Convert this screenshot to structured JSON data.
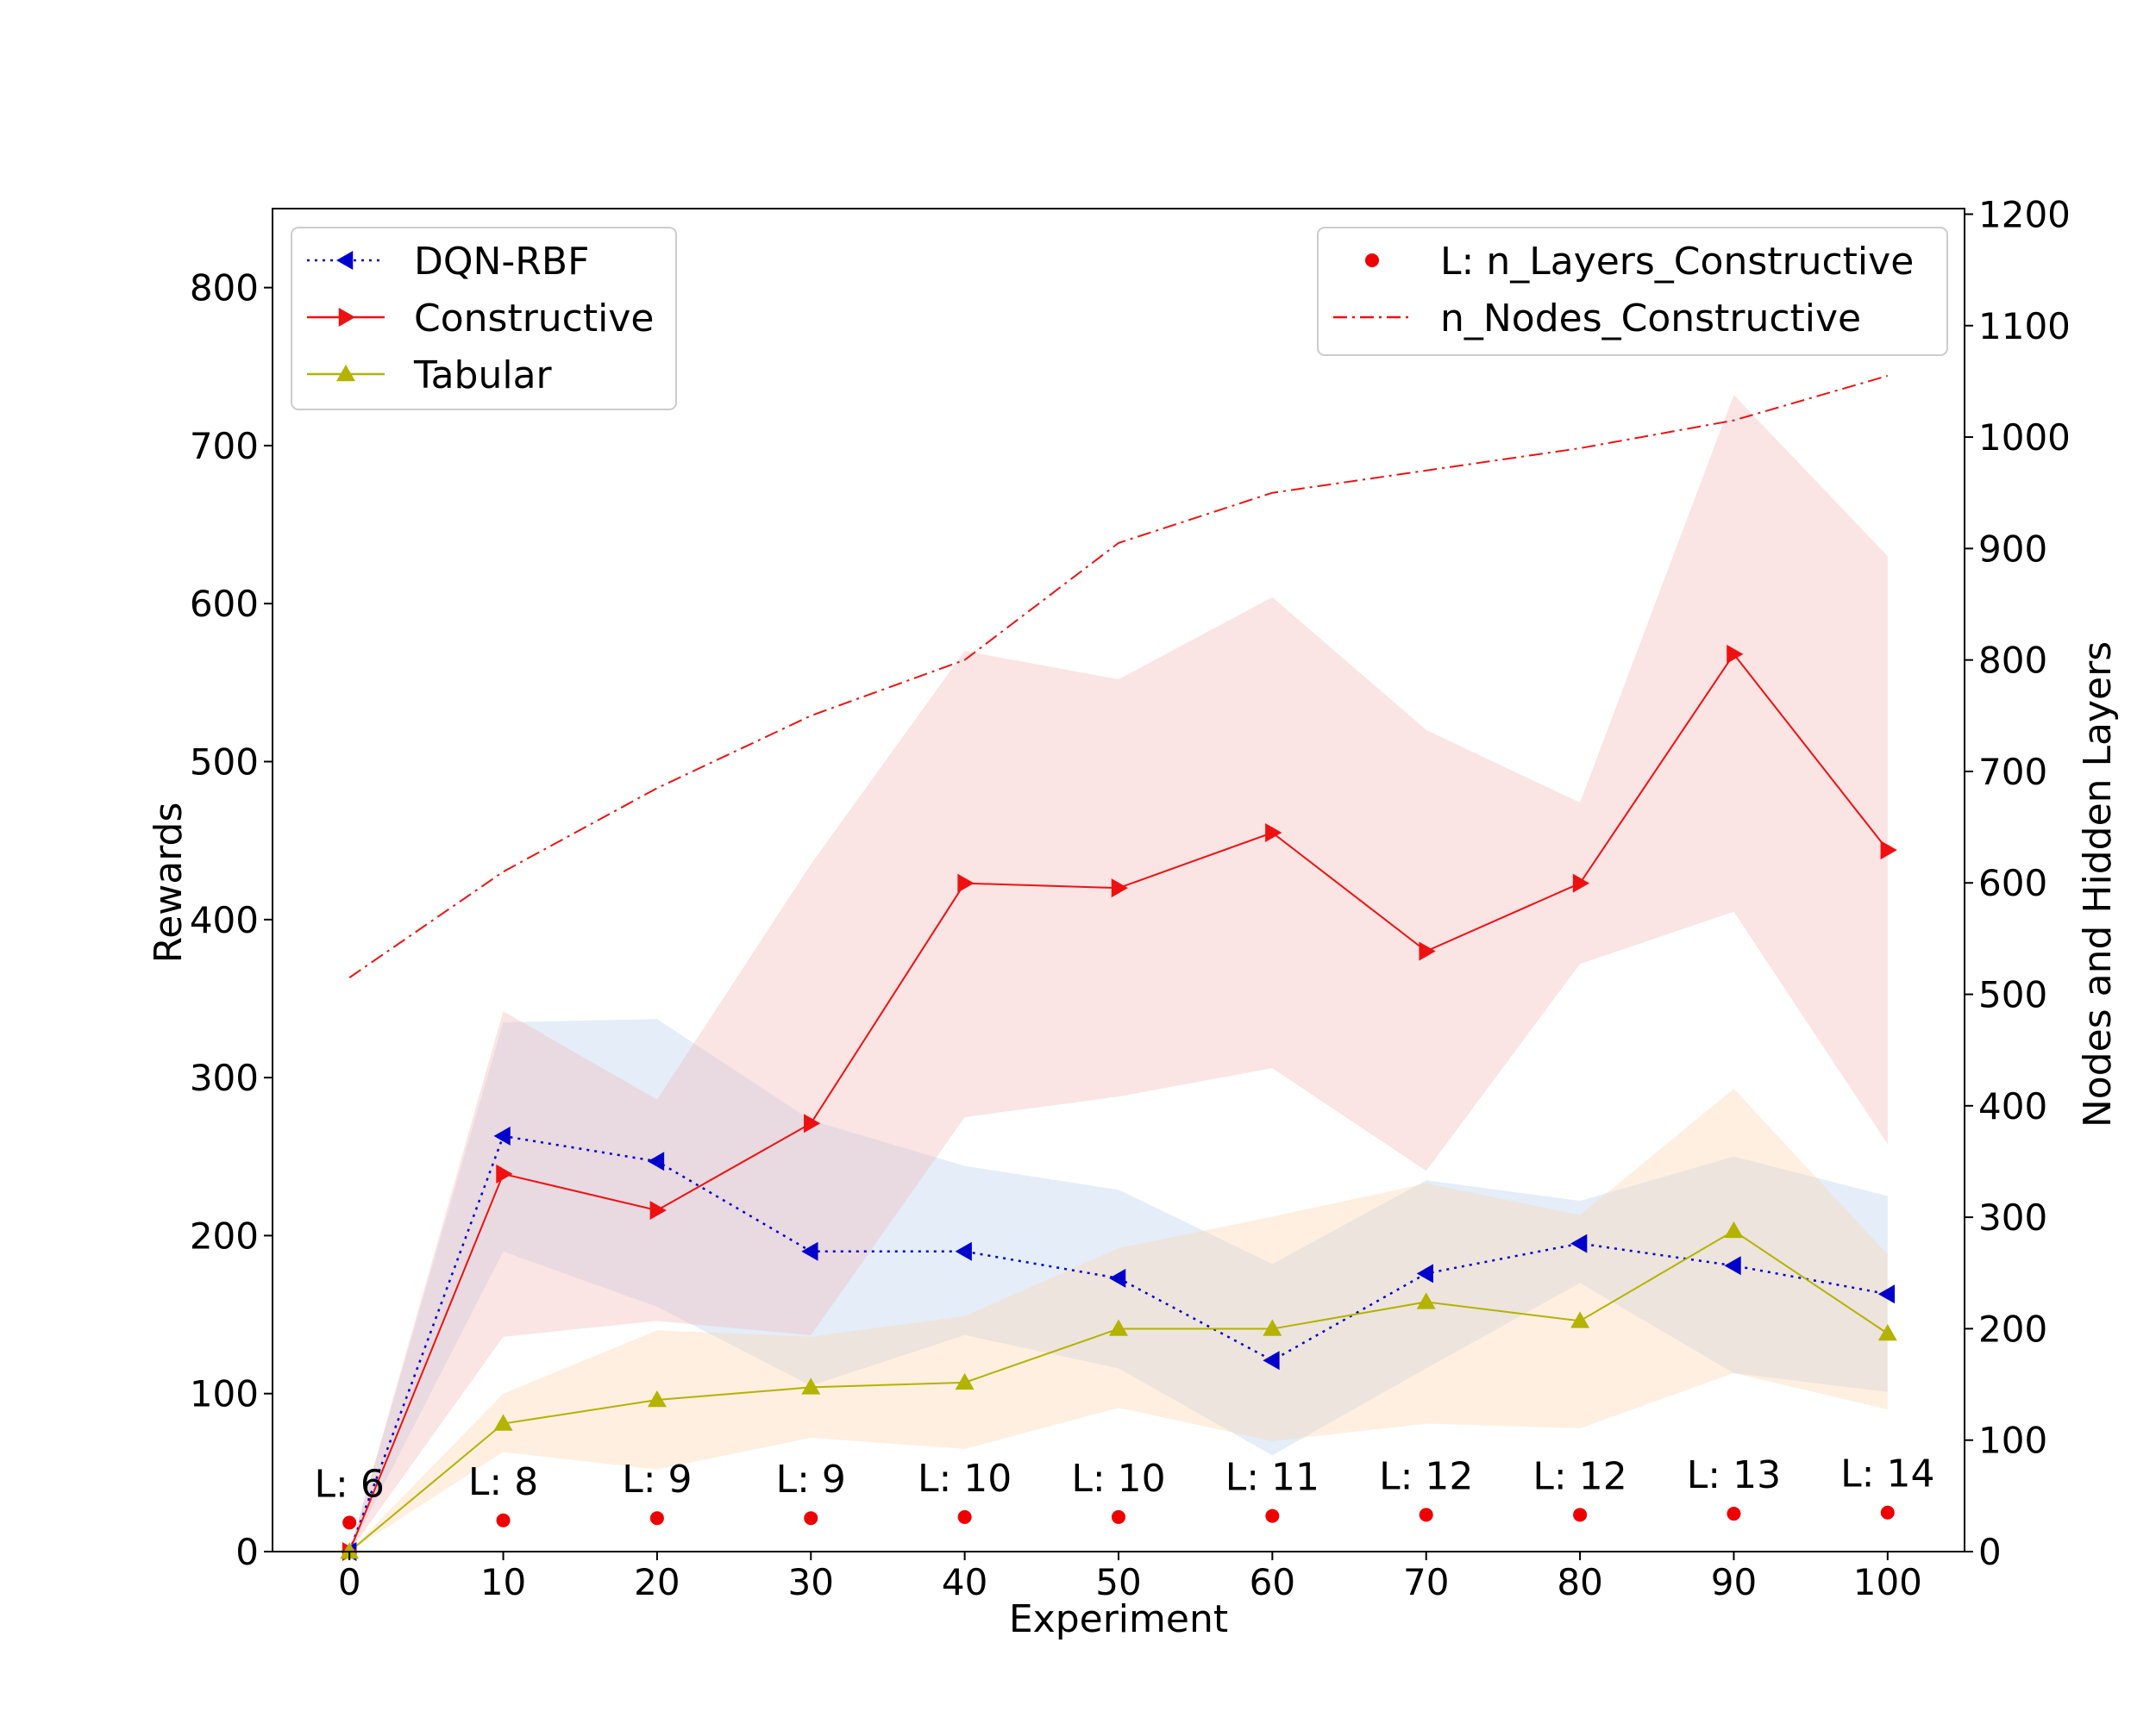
{
  "chart_data": {
    "type": "line",
    "x": [
      0,
      10,
      20,
      30,
      40,
      50,
      60,
      70,
      80,
      90,
      100
    ],
    "xlabel": "Experiment",
    "ylabel": "Rewards",
    "ylabel_right": "Nodes and Hidden Layers",
    "xlim": [
      -5,
      105
    ],
    "ylim": [
      0,
      850
    ],
    "ylim_right": [
      0,
      1205
    ],
    "xticks": [
      0,
      10,
      20,
      30,
      40,
      50,
      60,
      70,
      80,
      90,
      100
    ],
    "yticks": [
      0,
      100,
      200,
      300,
      400,
      500,
      600,
      700,
      800
    ],
    "yticks_right": [
      0,
      100,
      200,
      300,
      400,
      500,
      600,
      700,
      800,
      900,
      1000,
      1100,
      1200
    ],
    "grid": false,
    "series": [
      {
        "name": "DQN-RBF",
        "axis": "left",
        "color": "#0000cc",
        "linestyle": "dotted",
        "marker": "triangle-left",
        "values": [
          0,
          263,
          247,
          190,
          190,
          173,
          121,
          176,
          195,
          181,
          163
        ],
        "band_upper": [
          0,
          335,
          337,
          273,
          244,
          229,
          182,
          235,
          222,
          250,
          225
        ],
        "band_lower": [
          0,
          190,
          155,
          105,
          137,
          116,
          61,
          116,
          170,
          113,
          101
        ],
        "band_color": "#b8d0ec"
      },
      {
        "name": "Constructive",
        "axis": "left",
        "color": "#ee1111",
        "linestyle": "solid",
        "marker": "triangle-right",
        "values": [
          0,
          239,
          216,
          271,
          423,
          420,
          455,
          380,
          423,
          568,
          444
        ],
        "band_upper": [
          0,
          342,
          286,
          435,
          570,
          552,
          604,
          520,
          474,
          732,
          630
        ],
        "band_lower": [
          0,
          136,
          146,
          137,
          275,
          288,
          306,
          241,
          372,
          405,
          258
        ],
        "band_color": "#f2b8b8"
      },
      {
        "name": "Tabular",
        "axis": "left",
        "color": "#b3b300",
        "linestyle": "solid",
        "marker": "triangle-up",
        "values": [
          0,
          81,
          96,
          104,
          107,
          141,
          141,
          158,
          146,
          203,
          138
        ],
        "band_upper": [
          0,
          100,
          140,
          136,
          149,
          192,
          212,
          233,
          213,
          293,
          188
        ],
        "band_lower": [
          0,
          63,
          52,
          72,
          65,
          91,
          70,
          81,
          78,
          113,
          90
        ],
        "band_color": "#fdd5b0"
      },
      {
        "name": "n_Nodes_Constructive",
        "axis": "right",
        "color": "#ee1111",
        "linestyle": "dashdot",
        "marker": "none",
        "values": [
          515,
          610,
          685,
          750,
          800,
          905,
          950,
          970,
          990,
          1015,
          1055
        ]
      },
      {
        "name": "L: n_Layers_Constructive",
        "axis": "right",
        "color": "#ee0000",
        "linestyle": "none",
        "marker": "circle",
        "values": [
          26,
          28,
          30,
          30,
          31,
          31,
          32,
          33,
          33,
          34,
          35
        ],
        "labels": [
          "L: 6",
          "L: 8",
          "L: 9",
          "L: 9",
          "L: 10",
          "L: 10",
          "L: 11",
          "L: 12",
          "L: 12",
          "L: 13",
          "L: 14"
        ]
      }
    ],
    "legend_left": [
      "DQN-RBF",
      "Constructive",
      "Tabular"
    ],
    "legend_right": [
      "L: n_Layers_Constructive",
      "n_Nodes_Constructive"
    ],
    "legend_left_placement": "upper-left",
    "legend_right_placement": "upper-right"
  }
}
